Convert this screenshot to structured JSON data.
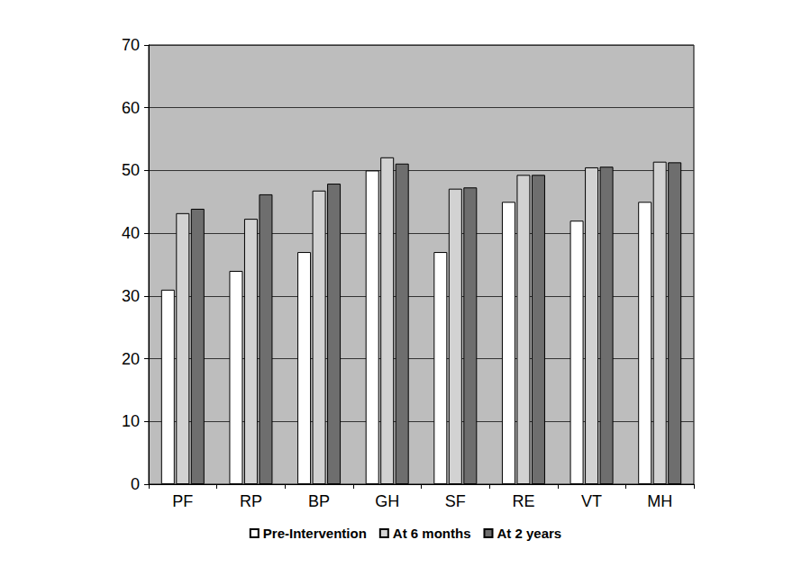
{
  "chart_data": {
    "type": "bar",
    "categories": [
      "PF",
      "RP",
      "BP",
      "GH",
      "SF",
      "RE",
      "VT",
      "MH"
    ],
    "series": [
      {
        "name": "Pre-Intervention",
        "color": "#ffffff",
        "values": [
          31,
          34,
          37,
          50,
          37,
          45,
          42,
          45
        ]
      },
      {
        "name": "At 6 months",
        "color": "#d2d2d2",
        "values": [
          43.2,
          42.3,
          46.8,
          52.1,
          47.1,
          49.3,
          50.5,
          51.4
        ]
      },
      {
        "name": "At 2 years",
        "color": "#6e6e6e",
        "values": [
          43.9,
          46.2,
          47.9,
          51.1,
          47.3,
          49.3,
          50.6,
          51.3
        ]
      }
    ],
    "ylim": [
      0,
      70
    ],
    "yticks": [
      0,
      10,
      20,
      30,
      40,
      50,
      60,
      70
    ],
    "grid": true,
    "legend": "bottom"
  }
}
